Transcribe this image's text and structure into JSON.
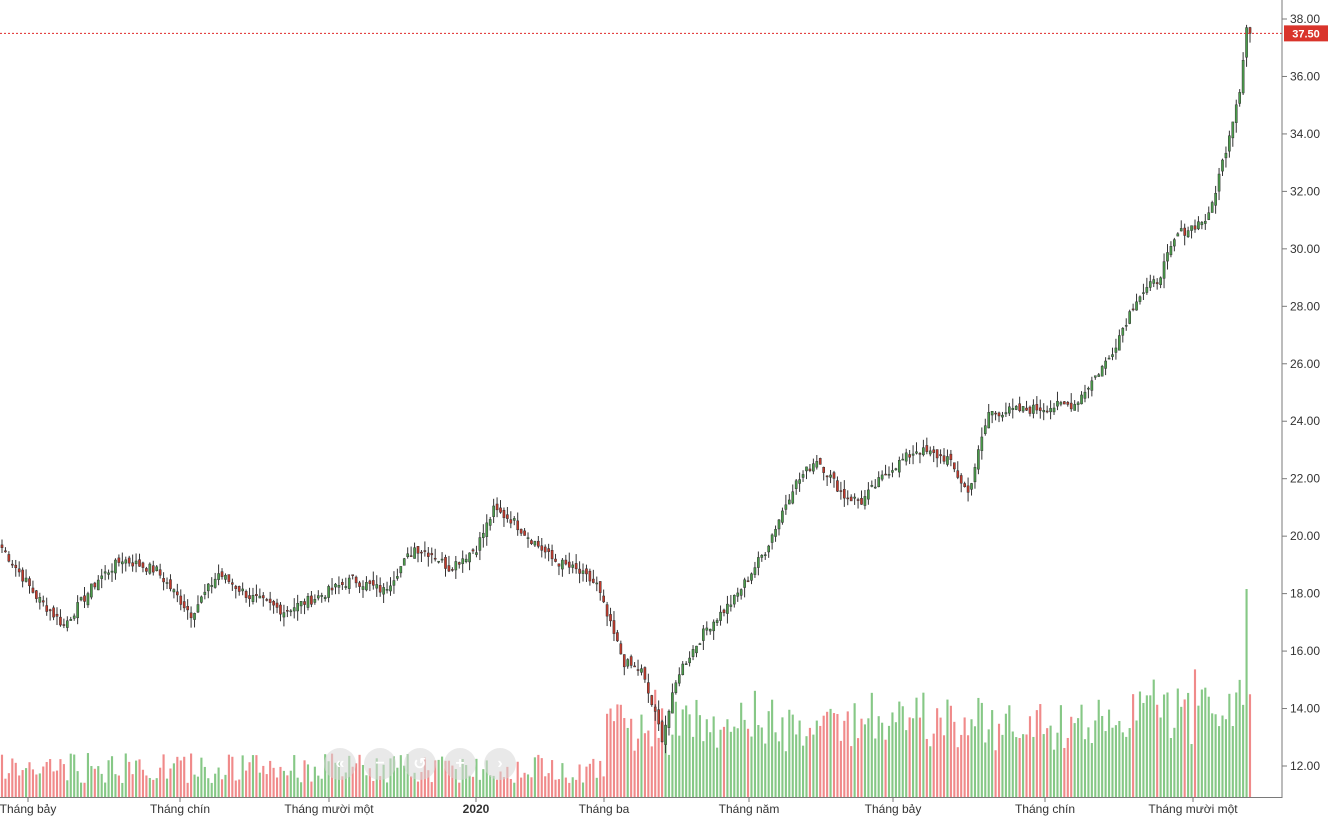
{
  "chart_data": {
    "type": "candlestick",
    "price_axis": {
      "min": 11,
      "max": 38.6,
      "ticks": [
        "12.00",
        "14.00",
        "16.00",
        "18.00",
        "20.00",
        "22.00",
        "24.00",
        "26.00",
        "28.00",
        "30.00",
        "32.00",
        "34.00",
        "36.00",
        "38.00"
      ]
    },
    "last_price": {
      "label": "37.50",
      "value": 37.5
    },
    "time_labels": [
      {
        "label": "Tháng bảy",
        "bold": false
      },
      {
        "label": "Tháng chín",
        "bold": false
      },
      {
        "label": "Tháng mười một",
        "bold": false
      },
      {
        "label": "2020",
        "bold": true
      },
      {
        "label": "Tháng ba",
        "bold": false
      },
      {
        "label": "Tháng năm",
        "bold": false
      },
      {
        "label": "Tháng bảy",
        "bold": false
      },
      {
        "label": "Tháng chín",
        "bold": false
      },
      {
        "label": "Tháng mười một",
        "bold": false
      }
    ],
    "close_anchors": [
      {
        "i": 0,
        "v": 19.6
      },
      {
        "i": 10,
        "v": 17.9
      },
      {
        "i": 18,
        "v": 16.9
      },
      {
        "i": 28,
        "v": 18.5
      },
      {
        "i": 35,
        "v": 19.2
      },
      {
        "i": 45,
        "v": 18.8
      },
      {
        "i": 55,
        "v": 17.3
      },
      {
        "i": 63,
        "v": 18.7
      },
      {
        "i": 72,
        "v": 17.9
      },
      {
        "i": 82,
        "v": 17.4
      },
      {
        "i": 92,
        "v": 17.9
      },
      {
        "i": 102,
        "v": 18.5
      },
      {
        "i": 111,
        "v": 18.1
      },
      {
        "i": 120,
        "v": 19.6
      },
      {
        "i": 125,
        "v": 19.4
      },
      {
        "i": 130,
        "v": 18.9
      },
      {
        "i": 138,
        "v": 19.6
      },
      {
        "i": 143,
        "v": 20.9
      },
      {
        "i": 148,
        "v": 20.6
      },
      {
        "i": 154,
        "v": 19.9
      },
      {
        "i": 160,
        "v": 19.2
      },
      {
        "i": 167,
        "v": 18.8
      },
      {
        "i": 173,
        "v": 18.3
      },
      {
        "i": 176,
        "v": 17.2
      },
      {
        "i": 181,
        "v": 15.6
      },
      {
        "i": 186,
        "v": 15.3
      },
      {
        "i": 192,
        "v": 13.0
      },
      {
        "i": 197,
        "v": 15.3
      },
      {
        "i": 205,
        "v": 16.8
      },
      {
        "i": 213,
        "v": 17.8
      },
      {
        "i": 222,
        "v": 19.5
      },
      {
        "i": 230,
        "v": 21.7
      },
      {
        "i": 237,
        "v": 22.7
      },
      {
        "i": 245,
        "v": 21.4
      },
      {
        "i": 250,
        "v": 21.2
      },
      {
        "i": 258,
        "v": 22.3
      },
      {
        "i": 266,
        "v": 23.0
      },
      {
        "i": 275,
        "v": 22.7
      },
      {
        "i": 281,
        "v": 21.5
      },
      {
        "i": 287,
        "v": 24.3
      },
      {
        "i": 298,
        "v": 24.4
      },
      {
        "i": 312,
        "v": 24.6
      },
      {
        "i": 322,
        "v": 26.2
      },
      {
        "i": 330,
        "v": 28.3
      },
      {
        "i": 336,
        "v": 28.9
      },
      {
        "i": 342,
        "v": 30.5
      },
      {
        "i": 351,
        "v": 31.1
      },
      {
        "i": 356,
        "v": 33.5
      },
      {
        "i": 360,
        "v": 35.6
      },
      {
        "i": 362,
        "v": 37.7
      },
      {
        "i": 363,
        "v": 37.5
      }
    ],
    "colors": {
      "up": "#4a9c4a",
      "down": "#c2392b",
      "up_volume": "#86c886",
      "down_volume": "#f08a8a",
      "last_price": "#d9342b",
      "axis": "#7a7a7a"
    }
  },
  "navigator": {
    "buttons": [
      {
        "name": "scroll-left-fast-button",
        "icon": "double-chevron-left",
        "glyph": "«"
      },
      {
        "name": "zoom-out-button",
        "icon": "minus",
        "glyph": "−"
      },
      {
        "name": "reset-button",
        "icon": "reset",
        "glyph": "↺"
      },
      {
        "name": "zoom-in-button",
        "icon": "plus",
        "glyph": "+"
      },
      {
        "name": "scroll-right-button",
        "icon": "chevron-right",
        "glyph": "›"
      }
    ]
  }
}
